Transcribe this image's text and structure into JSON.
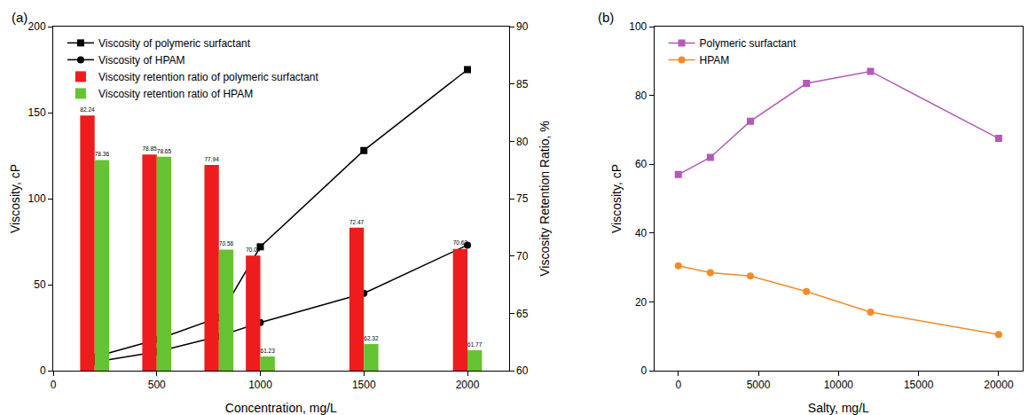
{
  "chart_data": [
    {
      "type": "bar",
      "title": "(a)",
      "x_label": "Concentration, mg/L",
      "y_label": "Viscosity, cP",
      "y2_label": "Viscosity Retention Ratio, %",
      "xlim": [
        0,
        2200
      ],
      "xticks": [
        0,
        500,
        1000,
        1500,
        2000
      ],
      "ylim": [
        0,
        200
      ],
      "yticks": [
        0,
        50,
        100,
        150,
        200
      ],
      "y2lim": [
        60,
        90
      ],
      "y2ticks": [
        60,
        65,
        70,
        75,
        80,
        85,
        90
      ],
      "legend": "upper left",
      "x": [
        200,
        500,
        800,
        1000,
        1500,
        2000
      ],
      "series": [
        {
          "name": "Viscosity of polymeric surfactant",
          "type": "line",
          "color": "#000000",
          "marker": "square",
          "line_style": "solid",
          "values": [
            8,
            18,
            31,
            72,
            128,
            175
          ]
        },
        {
          "name": "Viscosity of HPAM",
          "type": "line",
          "color": "#000000",
          "marker": "circle",
          "line_style": "solid",
          "values": [
            5,
            11,
            20,
            28,
            45,
            73
          ]
        },
        {
          "name": "Viscosity retention ratio of polymeric surfactant",
          "type": "bar",
          "axis": "y2",
          "color": "#ee1c1c",
          "data_labels": true,
          "values": [
            82.24,
            78.85,
            77.94,
            70.04,
            72.47,
            70.62
          ]
        },
        {
          "name": "Viscosity retention ratio of HPAM",
          "type": "bar",
          "axis": "y2",
          "color": "#66c232",
          "data_labels": true,
          "values": [
            78.36,
            78.65,
            70.56,
            61.23,
            62.32,
            61.77
          ]
        }
      ]
    },
    {
      "type": "line",
      "title": "(b)",
      "x_label": "Salty, mg/L",
      "y_label": "Viscosity, cP",
      "xlim": [
        -1500,
        21500
      ],
      "xticks": [
        0,
        5000,
        10000,
        15000,
        20000
      ],
      "ylim": [
        0,
        100
      ],
      "yticks": [
        0,
        20,
        40,
        60,
        80,
        100
      ],
      "legend": "upper left",
      "x": [
        0,
        2000,
        4500,
        8000,
        12000,
        20000
      ],
      "series": [
        {
          "name": "Polymeric surfactant",
          "color": "#b35ab8",
          "marker": "square",
          "line_style": "solid",
          "values": [
            57,
            62,
            72.5,
            83.5,
            87,
            67.5
          ]
        },
        {
          "name": "HPAM",
          "color": "#f28c28",
          "marker": "circle",
          "line_style": "solid",
          "values": [
            30.5,
            28.5,
            27.5,
            23,
            17,
            10.5
          ]
        }
      ]
    }
  ]
}
